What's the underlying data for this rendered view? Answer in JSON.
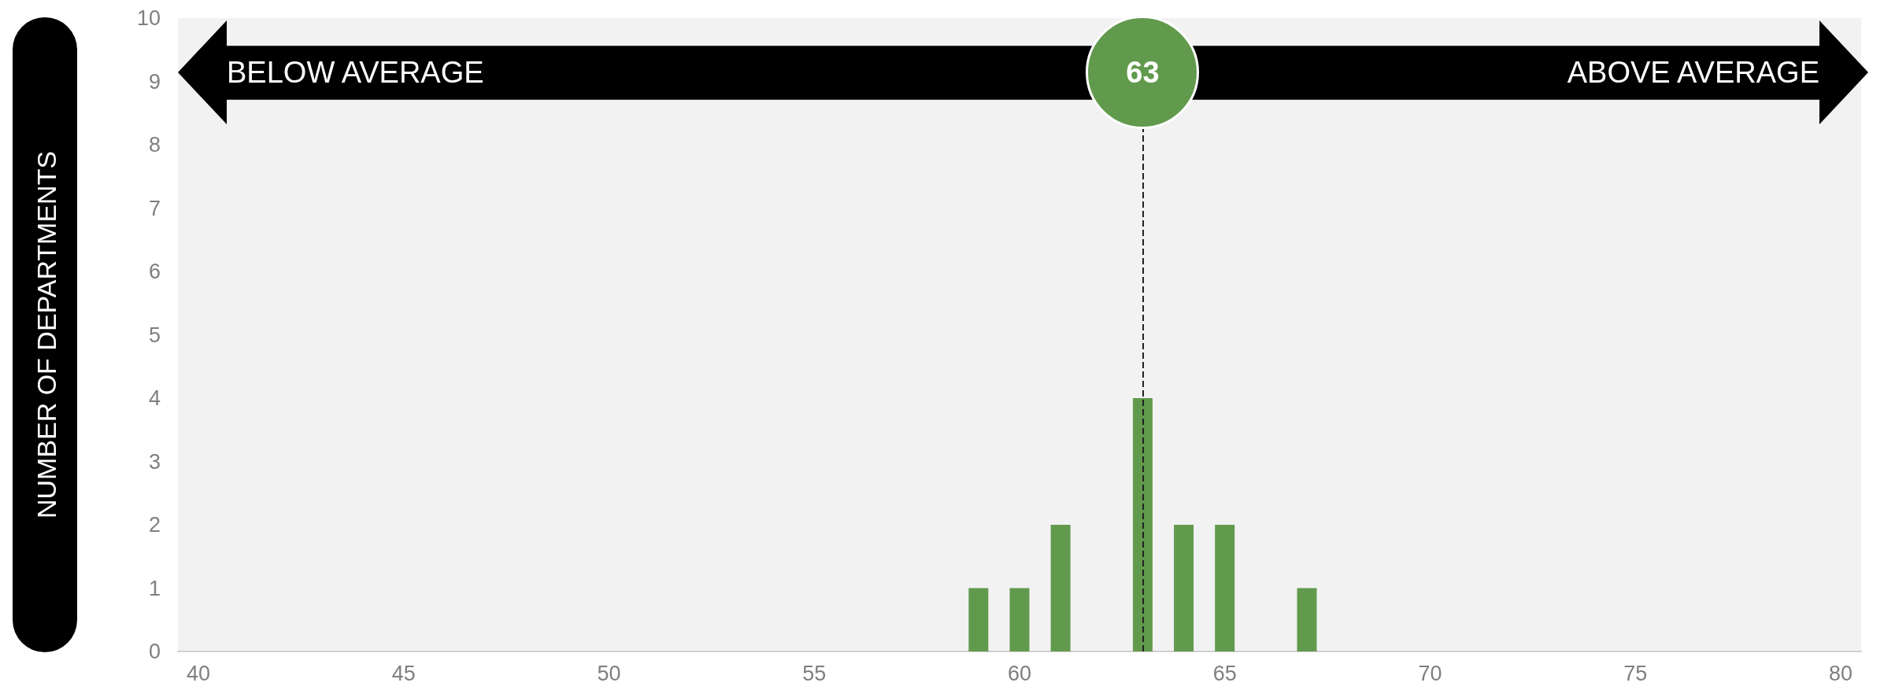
{
  "chart_data": {
    "type": "bar",
    "ylabel": "NUMBER OF DEPARTMENTS",
    "x": [
      59,
      60,
      61,
      63,
      64,
      65,
      67
    ],
    "values": [
      1,
      1,
      2,
      4,
      2,
      2,
      1
    ],
    "color": "#629a4d",
    "xlim": [
      39.5,
      80.5
    ],
    "xticks": [
      40,
      45,
      50,
      55,
      60,
      65,
      70,
      75,
      80
    ],
    "ylim": [
      0,
      10
    ],
    "yticks": [
      0,
      1,
      2,
      3,
      4,
      5,
      6,
      7,
      8,
      9,
      10
    ],
    "grid": false,
    "ref_lines": [
      {
        "axis": "x",
        "value": 63,
        "label": "63",
        "color": "#222222",
        "line_style": "dashed"
      }
    ],
    "annotations": [
      "BELOW AVERAGE",
      "ABOVE AVERAGE"
    ]
  }
}
